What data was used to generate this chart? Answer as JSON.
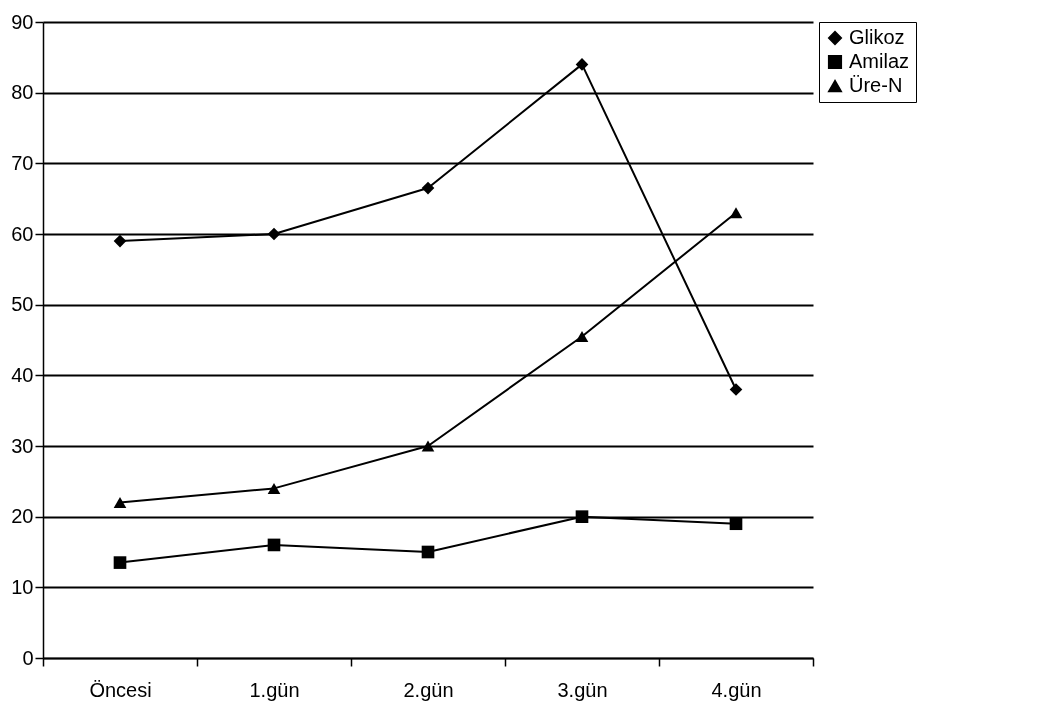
{
  "chart_data": {
    "type": "line",
    "categories": [
      "Öncesi",
      "1.gün",
      "2.gün",
      "3.gün",
      "4.gün"
    ],
    "series": [
      {
        "name": "Glikoz",
        "color": "#000000",
        "marker": "diamond",
        "values": [
          59,
          60,
          66.5,
          84,
          38
        ]
      },
      {
        "name": "Amilaz",
        "color": "#000000",
        "marker": "square",
        "values": [
          13.5,
          16,
          15,
          20,
          19
        ]
      },
      {
        "name": "Üre-N",
        "color": "#000000",
        "marker": "triangle",
        "values": [
          22,
          24,
          30,
          45.5,
          63
        ]
      }
    ],
    "ylim": [
      0,
      90
    ],
    "yticks": [
      0,
      10,
      20,
      30,
      40,
      50,
      60,
      70,
      80,
      90
    ],
    "grid": "y",
    "legend": "right"
  }
}
